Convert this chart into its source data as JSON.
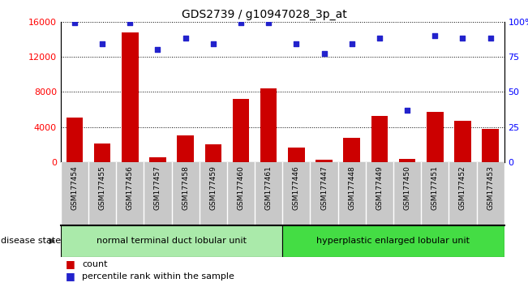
{
  "title": "GDS2739 / g10947028_3p_at",
  "samples": [
    "GSM177454",
    "GSM177455",
    "GSM177456",
    "GSM177457",
    "GSM177458",
    "GSM177459",
    "GSM177460",
    "GSM177461",
    "GSM177446",
    "GSM177447",
    "GSM177448",
    "GSM177449",
    "GSM177450",
    "GSM177451",
    "GSM177452",
    "GSM177453"
  ],
  "counts": [
    5100,
    2100,
    14800,
    600,
    3000,
    2000,
    7200,
    8400,
    1700,
    300,
    2800,
    5300,
    400,
    5700,
    4700,
    3800
  ],
  "percentiles": [
    99,
    84,
    99,
    80,
    88,
    84,
    99,
    99,
    84,
    77,
    84,
    88,
    37,
    90,
    88,
    88
  ],
  "group1_label": "normal terminal duct lobular unit",
  "group2_label": "hyperplastic enlarged lobular unit",
  "group1_count": 8,
  "group2_count": 8,
  "bar_color": "#cc0000",
  "dot_color": "#2222cc",
  "ylim_left": [
    0,
    16000
  ],
  "ylim_right": [
    0,
    100
  ],
  "yticks_left": [
    0,
    4000,
    8000,
    12000,
    16000
  ],
  "yticks_right": [
    0,
    25,
    50,
    75,
    100
  ],
  "group1_color": "#aaeaaa",
  "group2_color": "#44dd44",
  "disease_state_label": "disease state",
  "legend_count_label": "count",
  "legend_pct_label": "percentile rank within the sample",
  "tick_area_color": "#c8c8c8"
}
